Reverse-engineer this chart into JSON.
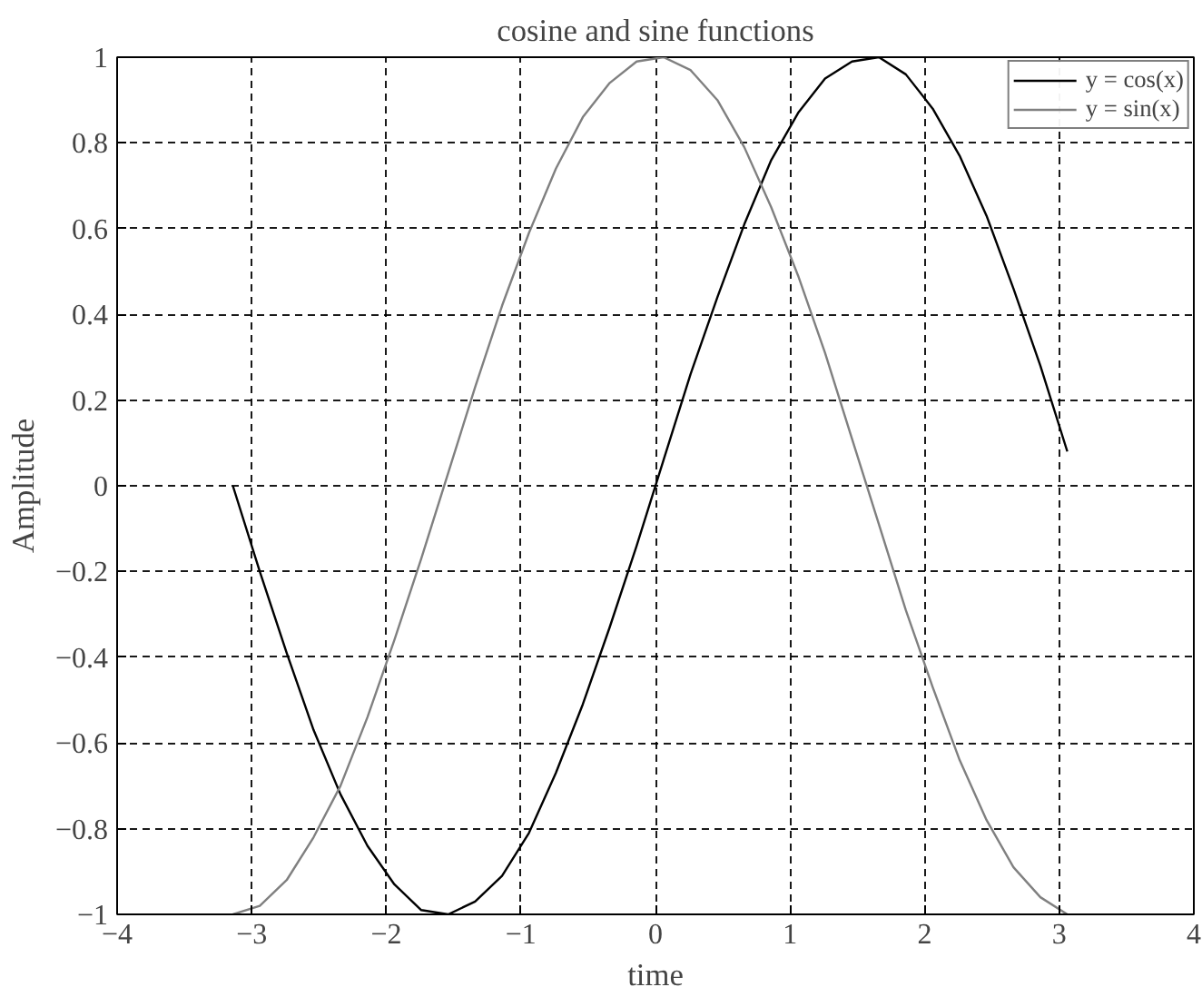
{
  "chart_data": {
    "type": "line",
    "title": "cosine and sine functions",
    "xlabel": "time",
    "ylabel": "Amplitude",
    "x": [
      -3.14,
      -2.94,
      -2.74,
      -2.54,
      -2.34,
      -2.14,
      -1.94,
      -1.74,
      -1.54,
      -1.34,
      -1.14,
      -0.94,
      -0.74,
      -0.54,
      -0.34,
      -0.14,
      0.06,
      0.26,
      0.46,
      0.66,
      0.86,
      1.06,
      1.26,
      1.46,
      1.66,
      1.86,
      2.06,
      2.26,
      2.46,
      2.66,
      2.86,
      3.06
    ],
    "series": [
      {
        "name": "y = cos(x)",
        "color": "#000000",
        "values": [
          0.0,
          -0.2,
          -0.39,
          -0.57,
          -0.72,
          -0.84,
          -0.93,
          -0.99,
          -1.0,
          -0.97,
          -0.91,
          -0.81,
          -0.67,
          -0.51,
          -0.33,
          -0.14,
          0.06,
          0.26,
          0.44,
          0.61,
          0.76,
          0.87,
          0.95,
          0.99,
          1.0,
          0.96,
          0.88,
          0.77,
          0.63,
          0.46,
          0.28,
          0.08
        ]
      },
      {
        "name": "y = sin(x)",
        "color": "#808080",
        "values": [
          -1.0,
          -0.98,
          -0.92,
          -0.82,
          -0.7,
          -0.54,
          -0.36,
          -0.17,
          0.03,
          0.23,
          0.42,
          0.59,
          0.74,
          0.86,
          0.94,
          0.99,
          1.0,
          0.97,
          0.9,
          0.79,
          0.65,
          0.49,
          0.31,
          0.11,
          -0.09,
          -0.29,
          -0.47,
          -0.64,
          -0.78,
          -0.89,
          -0.96,
          -1.0
        ]
      }
    ],
    "xlim": [
      -4,
      4
    ],
    "ylim": [
      -1,
      1
    ],
    "xticks": [
      -4,
      -3,
      -2,
      -1,
      0,
      1,
      2,
      3,
      4
    ],
    "yticks": [
      -1,
      -0.8,
      -0.6,
      -0.4,
      -0.2,
      0,
      0.2,
      0.4,
      0.6,
      0.8,
      1
    ],
    "grid": true,
    "legend": "top right",
    "line_style": "solid",
    "marker": "none"
  }
}
